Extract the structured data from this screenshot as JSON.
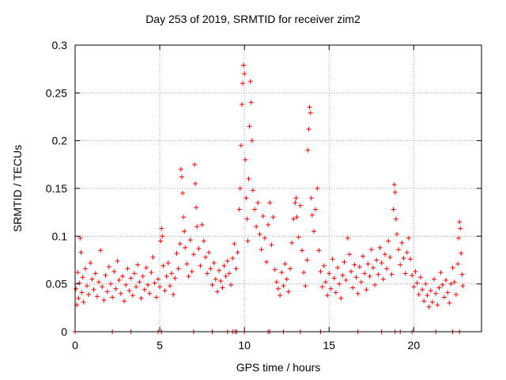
{
  "chart_data": {
    "type": "scatter",
    "title": "Day 253 of 2019, SRMTID for receiver zim2",
    "xlabel": "GPS time / hours",
    "ylabel": "SRMTID / TECUs",
    "xlim": [
      0,
      24
    ],
    "ylim": [
      0,
      0.3
    ],
    "xticks": [
      0,
      5,
      10,
      15,
      20
    ],
    "yticks": [
      0,
      0.05,
      0.1,
      0.15,
      0.2,
      0.25,
      0.3
    ],
    "ytick_labels": [
      "0",
      "0.05",
      "0.1",
      "0.15",
      "0.2",
      "0.25",
      "0.3"
    ],
    "grid": true,
    "marker": "+",
    "color": "#ff0000",
    "series": [
      {
        "name": "SRMTID",
        "points": [
          [
            0.05,
            0.045
          ],
          [
            0.1,
            0.028
          ],
          [
            0.15,
            0.062
          ],
          [
            0.2,
            0.035
          ],
          [
            0.25,
            0.051
          ],
          [
            0.3,
            0.098
          ],
          [
            0.35,
            0.083
          ],
          [
            0.4,
            0.041
          ],
          [
            0.45,
            0.057
          ],
          [
            0.5,
            0.031
          ],
          [
            0.6,
            0.066
          ],
          [
            0.7,
            0.048
          ],
          [
            0.8,
            0.039
          ],
          [
            0.9,
            0.072
          ],
          [
            1.0,
            0.055
          ],
          [
            1.1,
            0.044
          ],
          [
            1.2,
            0.061
          ],
          [
            1.3,
            0.037
          ],
          [
            1.4,
            0.052
          ],
          [
            1.5,
            0.085
          ],
          [
            1.6,
            0.047
          ],
          [
            1.7,
            0.033
          ],
          [
            1.8,
            0.059
          ],
          [
            1.9,
            0.042
          ],
          [
            2.0,
            0.068
          ],
          [
            2.1,
            0.05
          ],
          [
            2.2,
            0.036
          ],
          [
            2.3,
            0.063
          ],
          [
            2.4,
            0.045
          ],
          [
            2.5,
            0.074
          ],
          [
            2.6,
            0.054
          ],
          [
            2.7,
            0.04
          ],
          [
            2.8,
            0.058
          ],
          [
            2.9,
            0.032
          ],
          [
            3.0,
            0.049
          ],
          [
            3.1,
            0.066
          ],
          [
            3.2,
            0.043
          ],
          [
            3.3,
            0.056
          ],
          [
            3.4,
            0.038
          ],
          [
            3.5,
            0.061
          ],
          [
            3.6,
            0.047
          ],
          [
            3.7,
            0.07
          ],
          [
            3.8,
            0.052
          ],
          [
            3.9,
            0.035
          ],
          [
            4.0,
            0.058
          ],
          [
            4.1,
            0.044
          ],
          [
            4.2,
            0.067
          ],
          [
            4.3,
            0.049
          ],
          [
            4.4,
            0.04
          ],
          [
            4.5,
            0.062
          ],
          [
            4.6,
            0.078
          ],
          [
            4.7,
            0.051
          ],
          [
            4.8,
            0.036
          ],
          [
            4.9,
            0.055
          ],
          [
            5.0,
            0.047
          ],
          [
            5.05,
            0.095
          ],
          [
            5.1,
            0.108
          ],
          [
            5.15,
            0.1
          ],
          [
            5.2,
            0.069
          ],
          [
            5.3,
            0.043
          ],
          [
            5.4,
            0.058
          ],
          [
            5.5,
            0.072
          ],
          [
            5.6,
            0.048
          ],
          [
            5.7,
            0.061
          ],
          [
            5.8,
            0.039
          ],
          [
            5.9,
            0.056
          ],
          [
            6.0,
            0.082
          ],
          [
            6.1,
            0.066
          ],
          [
            6.2,
            0.092
          ],
          [
            6.25,
            0.17
          ],
          [
            6.3,
            0.162
          ],
          [
            6.35,
            0.145
          ],
          [
            6.4,
            0.12
          ],
          [
            6.45,
            0.105
          ],
          [
            6.5,
            0.088
          ],
          [
            6.6,
            0.071
          ],
          [
            6.7,
            0.058
          ],
          [
            6.8,
            0.096
          ],
          [
            6.9,
            0.063
          ],
          [
            7.0,
            0.081
          ],
          [
            7.05,
            0.175
          ],
          [
            7.1,
            0.155
          ],
          [
            7.15,
            0.13
          ],
          [
            7.2,
            0.11
          ],
          [
            7.3,
            0.087
          ],
          [
            7.4,
            0.069
          ],
          [
            7.5,
            0.112
          ],
          [
            7.6,
            0.095
          ],
          [
            7.7,
            0.078
          ],
          [
            7.8,
            0.061
          ],
          [
            7.9,
            0.083
          ],
          [
            8.0,
            0.066
          ],
          [
            8.1,
            0.049
          ],
          [
            8.2,
            0.072
          ],
          [
            8.3,
            0.055
          ],
          [
            8.4,
            0.042
          ],
          [
            8.5,
            0.064
          ],
          [
            8.6,
            0.053
          ],
          [
            8.7,
            0.046
          ],
          [
            8.8,
            0.069
          ],
          [
            8.9,
            0.058
          ],
          [
            9.0,
            0.074
          ],
          [
            9.1,
            0.061
          ],
          [
            9.2,
            0.049
          ],
          [
            9.3,
            0.077
          ],
          [
            9.4,
            0.092
          ],
          [
            9.5,
            0.066
          ],
          [
            9.6,
            0.083
          ],
          [
            9.7,
            0.128
          ],
          [
            9.75,
            0.15
          ],
          [
            9.8,
            0.195
          ],
          [
            9.85,
            0.238
          ],
          [
            9.9,
            0.26
          ],
          [
            9.95,
            0.279
          ],
          [
            10.0,
            0.27
          ],
          [
            10.05,
            0.18
          ],
          [
            10.1,
            0.14
          ],
          [
            10.15,
            0.118
          ],
          [
            10.2,
            0.095
          ],
          [
            10.25,
            0.16
          ],
          [
            10.3,
            0.215
          ],
          [
            10.35,
            0.262
          ],
          [
            10.4,
            0.24
          ],
          [
            10.45,
            0.2
          ],
          [
            10.5,
            0.148
          ],
          [
            10.6,
            0.128
          ],
          [
            10.7,
            0.11
          ],
          [
            10.8,
            0.135
          ],
          [
            10.9,
            0.102
          ],
          [
            11.0,
            0.086
          ],
          [
            11.1,
            0.121
          ],
          [
            11.2,
            0.098
          ],
          [
            11.3,
            0.073
          ],
          [
            11.4,
            0.112
          ],
          [
            11.5,
            0.135
          ],
          [
            11.6,
            0.091
          ],
          [
            11.7,
            0.12
          ],
          [
            11.8,
            0.065
          ],
          [
            11.9,
            0.052
          ],
          [
            12.0,
            0.045
          ],
          [
            12.1,
            0.038
          ],
          [
            12.2,
            0.062
          ],
          [
            12.3,
            0.048
          ],
          [
            12.4,
            0.071
          ],
          [
            12.5,
            0.055
          ],
          [
            12.6,
            0.042
          ],
          [
            12.7,
            0.066
          ],
          [
            12.8,
            0.093
          ],
          [
            12.9,
            0.118
          ],
          [
            13.0,
            0.135
          ],
          [
            13.05,
            0.14
          ],
          [
            13.1,
            0.12
          ],
          [
            13.2,
            0.099
          ],
          [
            13.3,
            0.132
          ],
          [
            13.4,
            0.085
          ],
          [
            13.5,
            0.062
          ],
          [
            13.6,
            0.048
          ],
          [
            13.7,
            0.075
          ],
          [
            13.75,
            0.19
          ],
          [
            13.8,
            0.212
          ],
          [
            13.85,
            0.235
          ],
          [
            13.9,
            0.229
          ],
          [
            13.95,
            0.14
          ],
          [
            14.0,
            0.122
          ],
          [
            14.1,
            0.105
          ],
          [
            14.2,
            0.128
          ],
          [
            14.3,
            0.15
          ],
          [
            14.4,
            0.085
          ],
          [
            14.5,
            0.063
          ],
          [
            14.6,
            0.047
          ],
          [
            14.7,
            0.069
          ],
          [
            14.8,
            0.052
          ],
          [
            14.9,
            0.038
          ],
          [
            15.0,
            0.061
          ],
          [
            15.1,
            0.045
          ],
          [
            15.2,
            0.076
          ],
          [
            15.3,
            0.056
          ],
          [
            15.4,
            0.041
          ],
          [
            15.5,
            0.067
          ],
          [
            15.6,
            0.05
          ],
          [
            15.7,
            0.035
          ],
          [
            15.8,
            0.059
          ],
          [
            15.9,
            0.073
          ],
          [
            16.0,
            0.054
          ],
          [
            16.1,
            0.098
          ],
          [
            16.2,
            0.081
          ],
          [
            16.3,
            0.063
          ],
          [
            16.4,
            0.046
          ],
          [
            16.5,
            0.07
          ],
          [
            16.6,
            0.057
          ],
          [
            16.7,
            0.04
          ],
          [
            16.8,
            0.068
          ],
          [
            16.9,
            0.052
          ],
          [
            17.0,
            0.079
          ],
          [
            17.1,
            0.061
          ],
          [
            17.2,
            0.044
          ],
          [
            17.3,
            0.071
          ],
          [
            17.4,
            0.058
          ],
          [
            17.5,
            0.086
          ],
          [
            17.6,
            0.067
          ],
          [
            17.7,
            0.049
          ],
          [
            17.8,
            0.075
          ],
          [
            17.9,
            0.06
          ],
          [
            18.0,
            0.088
          ],
          [
            18.1,
            0.072
          ],
          [
            18.2,
            0.055
          ],
          [
            18.3,
            0.081
          ],
          [
            18.4,
            0.066
          ],
          [
            18.5,
            0.095
          ],
          [
            18.6,
            0.078
          ],
          [
            18.7,
            0.06
          ],
          [
            18.8,
            0.128
          ],
          [
            18.85,
            0.154
          ],
          [
            18.9,
            0.146
          ],
          [
            18.95,
            0.118
          ],
          [
            19.0,
            0.102
          ],
          [
            19.1,
            0.086
          ],
          [
            19.2,
            0.07
          ],
          [
            19.3,
            0.093
          ],
          [
            19.4,
            0.077
          ],
          [
            19.5,
            0.061
          ],
          [
            19.6,
            0.083
          ],
          [
            19.7,
            0.098
          ],
          [
            19.8,
            0.076
          ],
          [
            19.9,
            0.059
          ],
          [
            20.0,
            0.047
          ],
          [
            20.1,
            0.063
          ],
          [
            20.2,
            0.051
          ],
          [
            20.3,
            0.039
          ],
          [
            20.4,
            0.057
          ],
          [
            20.5,
            0.044
          ],
          [
            20.6,
            0.032
          ],
          [
            20.7,
            0.05
          ],
          [
            20.8,
            0.038
          ],
          [
            20.9,
            0.026
          ],
          [
            21.0,
            0.043
          ],
          [
            21.1,
            0.031
          ],
          [
            21.2,
            0.055
          ],
          [
            21.3,
            0.04
          ],
          [
            21.4,
            0.028
          ],
          [
            21.5,
            0.046
          ],
          [
            21.6,
            0.062
          ],
          [
            21.7,
            0.049
          ],
          [
            21.8,
            0.036
          ],
          [
            21.9,
            0.054
          ],
          [
            22.0,
            0.041
          ],
          [
            22.1,
            0.03
          ],
          [
            22.2,
            0.05
          ],
          [
            22.3,
            0.067
          ],
          [
            22.4,
            0.052
          ],
          [
            22.5,
            0.039
          ],
          [
            22.6,
            0.071
          ],
          [
            22.65,
            0.098
          ],
          [
            22.7,
            0.115
          ],
          [
            22.75,
            0.108
          ],
          [
            22.8,
            0.082
          ],
          [
            22.85,
            0.06
          ],
          [
            22.9,
            0.048
          ],
          [
            0.0,
            0.0
          ],
          [
            2.2,
            0.0
          ],
          [
            3.3,
            0.0
          ],
          [
            4.9,
            0.0
          ],
          [
            5.1,
            0.0
          ],
          [
            7.0,
            0.0
          ],
          [
            8.1,
            0.0
          ],
          [
            9.0,
            0.0
          ],
          [
            9.3,
            0.0
          ],
          [
            9.45,
            0.0
          ],
          [
            9.55,
            0.0
          ],
          [
            10.0,
            0.0
          ],
          [
            11.4,
            0.0
          ],
          [
            11.5,
            0.0
          ],
          [
            12.3,
            0.0
          ],
          [
            13.3,
            0.0
          ],
          [
            14.5,
            0.0
          ],
          [
            16.7,
            0.0
          ],
          [
            18.1,
            0.0
          ],
          [
            18.9,
            0.0
          ],
          [
            19.2,
            0.0
          ],
          [
            19.9,
            0.0
          ],
          [
            21.3,
            0.0
          ],
          [
            22.3,
            0.0
          ],
          [
            22.7,
            0.0
          ]
        ]
      }
    ]
  }
}
